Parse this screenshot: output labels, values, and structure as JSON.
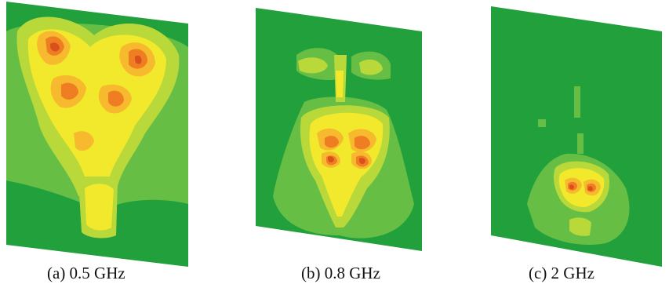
{
  "panels": [
    {
      "caption": "(a) 0.5 GHz"
    },
    {
      "caption": "(b) 0.8 GHz"
    },
    {
      "caption": "(c) 2 GHz"
    }
  ],
  "colors": {
    "background": "#22a03c",
    "level1": "#66bf44",
    "level2": "#b9d93a",
    "level3": "#f2e82c",
    "level4": "#f7b92e",
    "level5": "#ef7d22",
    "level6": "#d9501c"
  }
}
